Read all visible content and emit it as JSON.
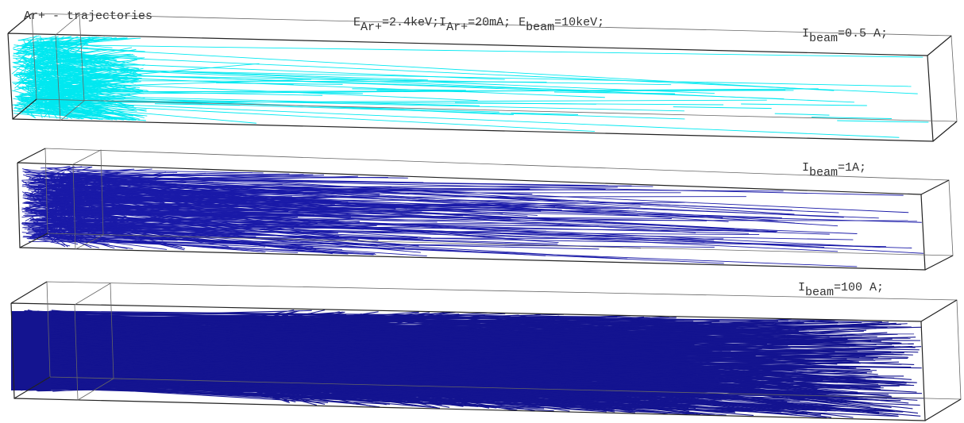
{
  "title": "Ar+ - trajectories",
  "parameters": [
    {
      "symbol": "E",
      "subscript": "Ar+",
      "value": "=2.4keV;"
    },
    {
      "symbol": "I",
      "subscript": "Ar+",
      "value": "=20mA;"
    },
    {
      "symbol": "E",
      "subscript": "beam",
      "value": "=10keV;"
    }
  ],
  "panels": [
    {
      "symbol": "I",
      "subscript": "beam",
      "value": "=0.5 A;"
    },
    {
      "symbol": "I",
      "subscript": "beam",
      "value": "=1A;"
    },
    {
      "symbol": "I",
      "subscript": "beam",
      "value": "=100 A;"
    }
  ]
}
